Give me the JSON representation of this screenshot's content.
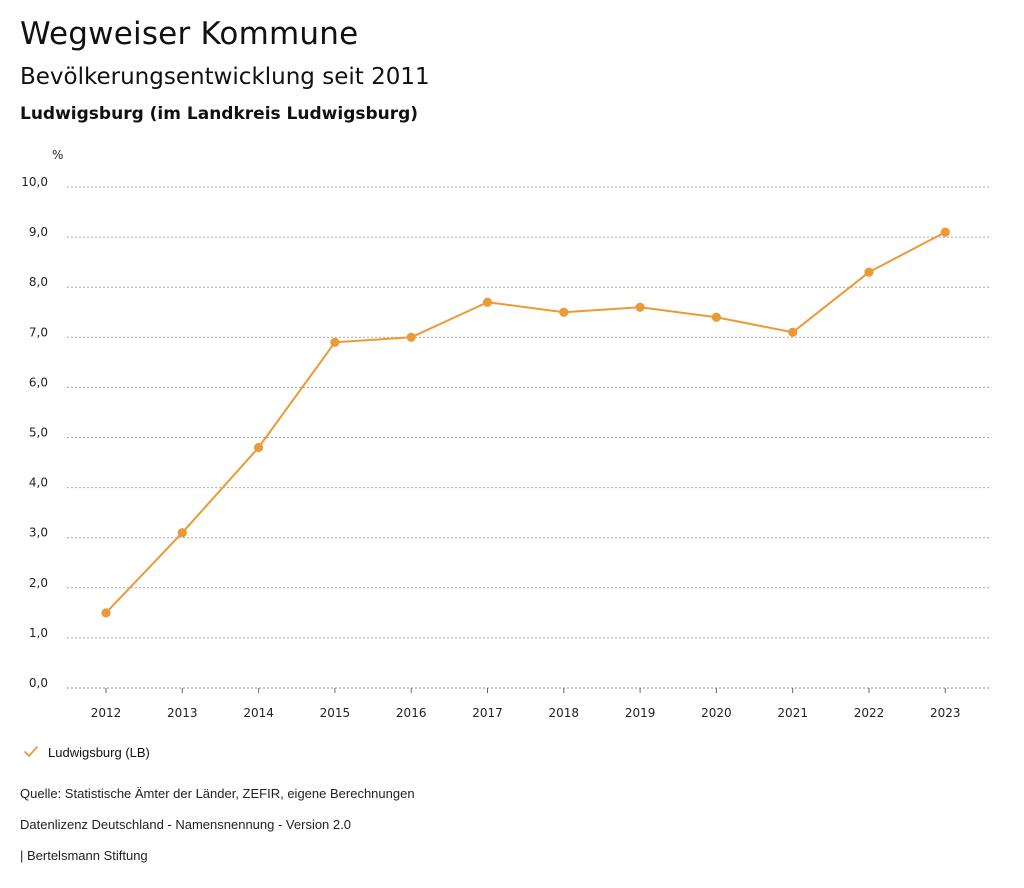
{
  "header": {
    "title": "Wegweiser Kommune",
    "subtitle": "Bevölkerungsentwicklung seit 2011",
    "region": "Ludwigsburg (im Landkreis Ludwigsburg)"
  },
  "legend": {
    "label": "Ludwigsburg (LB)",
    "color": "#ec9a36"
  },
  "footer": {
    "source": "Quelle: Statistische Ämter der Länder, ZEFIR, eigene Berechnungen",
    "license": "Datenlizenz Deutschland - Namensnennung - Version 2.0",
    "publisher": "| Bertelsmann Stiftung"
  },
  "chart_data": {
    "type": "line",
    "title": "Bevölkerungsentwicklung seit 2011",
    "xlabel": "",
    "ylabel": "%",
    "ylim": [
      0,
      10
    ],
    "yticks": [
      "0,0",
      "1,0",
      "2,0",
      "3,0",
      "4,0",
      "5,0",
      "6,0",
      "7,0",
      "8,0",
      "9,0",
      "10,0"
    ],
    "grid": true,
    "categories": [
      "2012",
      "2013",
      "2014",
      "2015",
      "2016",
      "2017",
      "2018",
      "2019",
      "2020",
      "2021",
      "2022",
      "2023"
    ],
    "series": [
      {
        "name": "Ludwigsburg (LB)",
        "color": "#ec9a36",
        "values": [
          1.5,
          3.1,
          4.8,
          6.9,
          7.0,
          7.7,
          7.5,
          7.6,
          7.4,
          7.1,
          8.3,
          9.1
        ]
      }
    ]
  }
}
